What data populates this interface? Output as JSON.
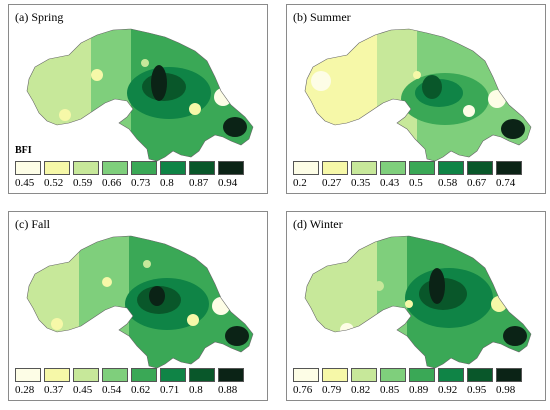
{
  "legend_label": "BFI",
  "legend_colors": [
    "#fdfde6",
    "#f6f8a8",
    "#c7e89a",
    "#7fcf7c",
    "#3aa856",
    "#0f8446",
    "#09572a",
    "#0b2316"
  ],
  "panels": [
    {
      "title": "(a)  Spring",
      "show_legend_label": true,
      "ticks": [
        "0.45",
        "0.52",
        "0.59",
        "0.66",
        "0.73",
        "0.8",
        "0.87",
        "0.94"
      ]
    },
    {
      "title": "(b) Summer",
      "show_legend_label": false,
      "ticks": [
        "0.2",
        "0.27",
        "0.35",
        "0.43",
        "0.5",
        "0.58",
        "0.67",
        "0.74"
      ]
    },
    {
      "title": "(c) Fall",
      "show_legend_label": false,
      "ticks": [
        "0.28",
        "0.37",
        "0.45",
        "0.54",
        "0.62",
        "0.71",
        "0.8",
        "0.88"
      ]
    },
    {
      "title": "(d)  Winter",
      "show_legend_label": false,
      "ticks": [
        "0.76",
        "0.79",
        "0.82",
        "0.85",
        "0.89",
        "0.92",
        "0.95",
        "0.98"
      ]
    }
  ]
}
